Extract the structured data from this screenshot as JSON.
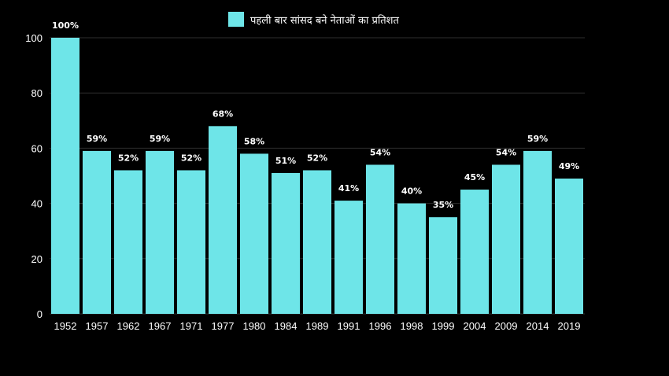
{
  "chart_data": {
    "type": "bar",
    "categories": [
      "1952",
      "1957",
      "1962",
      "1967",
      "1971",
      "1977",
      "1980",
      "1984",
      "1989",
      "1991",
      "1996",
      "1998",
      "1999",
      "2004",
      "2009",
      "2014",
      "2019"
    ],
    "series": [
      {
        "name": "पहली बार सांसद बने नेताओं का प्रतिशत",
        "values": [
          100,
          59,
          52,
          59,
          52,
          68,
          58,
          51,
          52,
          41,
          54,
          40,
          35,
          45,
          54,
          59,
          49
        ],
        "data_labels": [
          "100%",
          "59%",
          "52%",
          "59%",
          "52%",
          "68%",
          "58%",
          "51%",
          "52%",
          "41%",
          "54%",
          "40%",
          "35%",
          "45%",
          "54%",
          "59%",
          "49%"
        ]
      }
    ],
    "yticks": [
      "0",
      "20",
      "40",
      "60",
      "80",
      "100"
    ],
    "ylim": [
      0,
      100
    ],
    "grid": true,
    "legend_position": "top-center",
    "colors": {
      "bar": "#6ee5e8",
      "background": "#000000",
      "grid": "#2e2e2e",
      "text": "#ffffff"
    }
  }
}
